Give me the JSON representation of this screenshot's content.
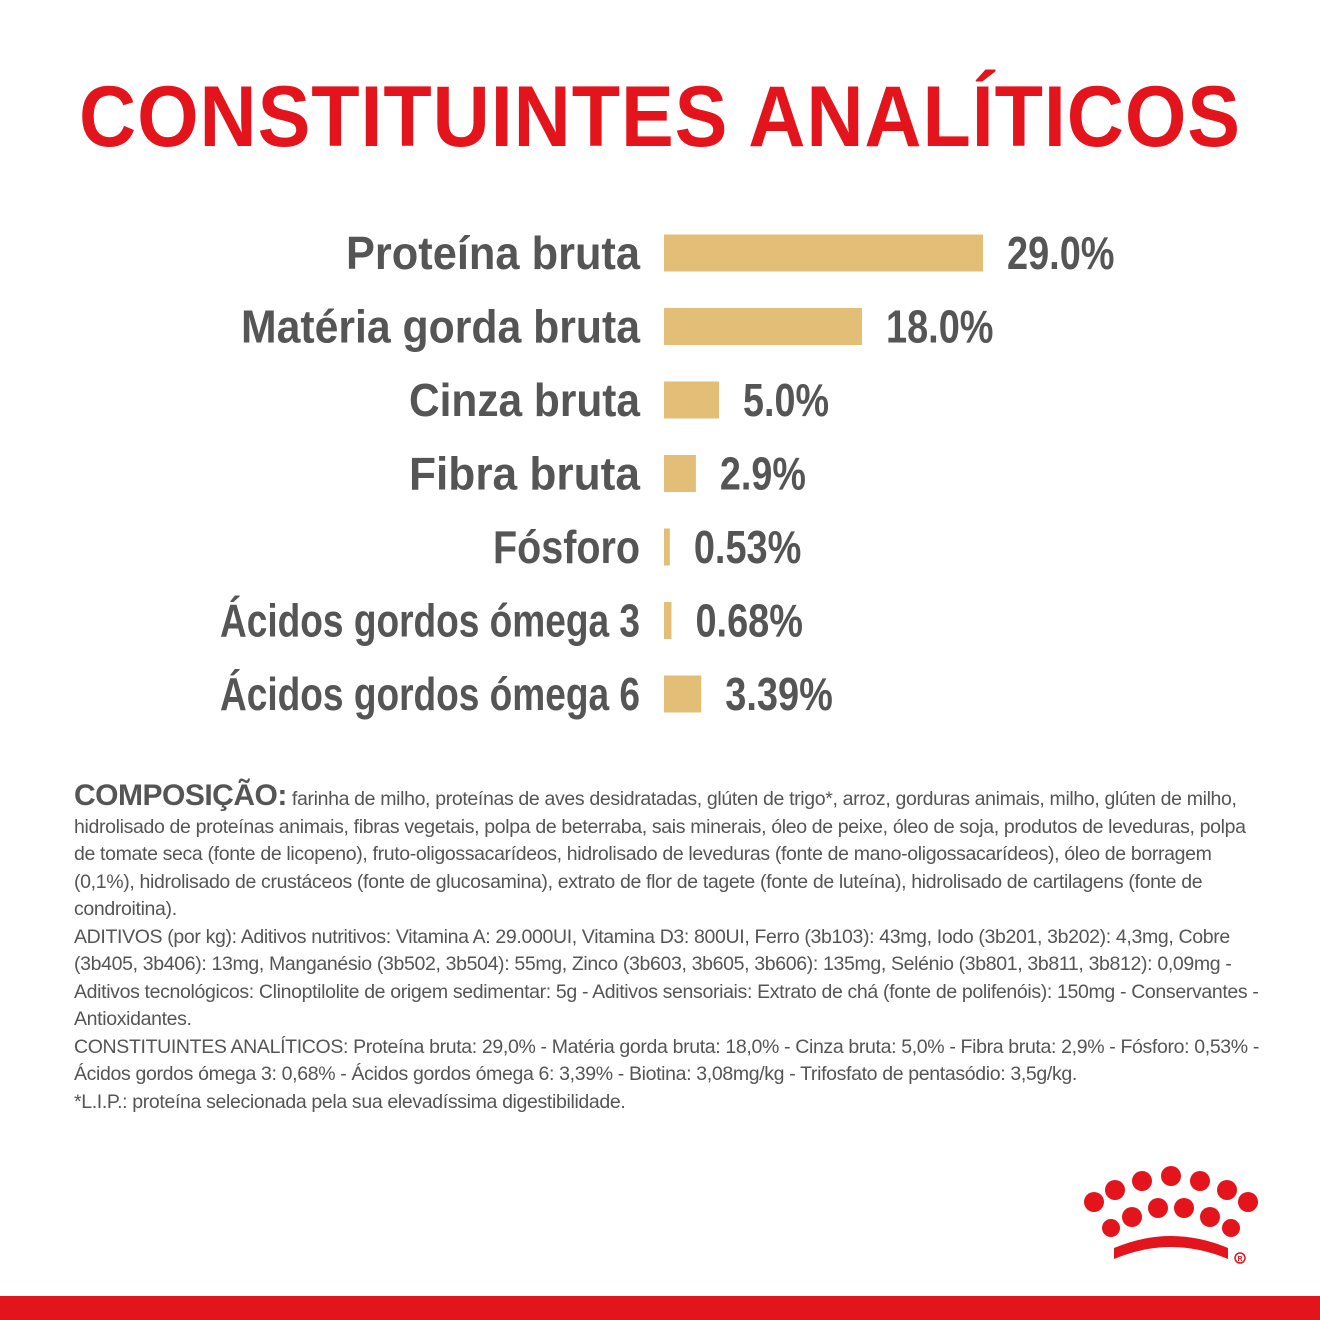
{
  "title": "CONSTITUINTES ANALÍTICOS",
  "chart_data": {
    "type": "bar",
    "orientation": "horizontal",
    "title": "CONSTITUINTES ANALÍTICOS",
    "categories": [
      "Proteína bruta",
      "Matéria gorda bruta",
      "Cinza bruta",
      "Fibra bruta",
      "Fósforo",
      "Ácidos gordos ómega 3",
      "Ácidos gordos ómega 6"
    ],
    "values": [
      29.0,
      18.0,
      5.0,
      2.9,
      0.53,
      0.68,
      3.39
    ],
    "value_labels": [
      "29.0%",
      "18.0%",
      "5.0%",
      "2.9%",
      "0.53%",
      "0.68%",
      "3.39%"
    ],
    "unit": "%",
    "grid": false,
    "bar_color": "#e3be76",
    "label_color": "#555555"
  },
  "composition": {
    "heading": "COMPOSIÇÃO:",
    "body": " farinha de milho, proteínas de aves desidratadas, glúten de trigo*, arroz, gorduras animais, milho, glúten de milho, hidrolisado de proteínas animais, fibras vegetais, polpa de beterraba, sais minerais, óleo de peixe, óleo de soja, produtos de leveduras, polpa de tomate seca (fonte de licopeno), fruto-oligossacarídeos, hidrolisado de leveduras (fonte de mano-oligossacarídeos), óleo de borragem (0,1%), hidrolisado de crustáceos (fonte de glucosamina), extrato de flor de tagete (fonte de luteína), hidrolisado de cartilagens (fonte de condroitina).",
    "additives": "ADITIVOS (por kg): Aditivos nutritivos: Vitamina A: 29.000UI, Vitamina D3: 800UI, Ferro (3b103): 43mg, Iodo (3b201, 3b202): 4,3mg, Cobre (3b405, 3b406): 13mg, Manganésio (3b502, 3b504): 55mg, Zinco (3b603, 3b605, 3b606): 135mg, Selénio (3b801, 3b811, 3b812): 0,09mg - Aditivos tecnológicos: Clinoptilolite de origem sedimentar: 5g - Aditivos sensoriais: Extrato de chá (fonte de polifenóis): 150mg - Conservantes - Antioxidantes.",
    "analytical": "CONSTITUINTES ANALÍTICOS: Proteína bruta: 29,0% - Matéria gorda bruta: 18,0% - Cinza bruta: 5,0% - Fibra bruta: 2,9% - Fósforo: 0,53% - Ácidos gordos ómega 3: 0,68% - Ácidos gordos ómega 6: 3,39% - Biotina: 3,08mg/kg - Trifosfato de pentasódio: 3,5g/kg.",
    "footnote": "*L.I.P.: proteína selecionada pela sua elevadíssima digestibilidade."
  },
  "colors": {
    "brand_red": "#e3141c",
    "bar": "#e3be76",
    "text": "#555555"
  },
  "logo": {
    "icon": "royal-canin-crown-logo"
  }
}
